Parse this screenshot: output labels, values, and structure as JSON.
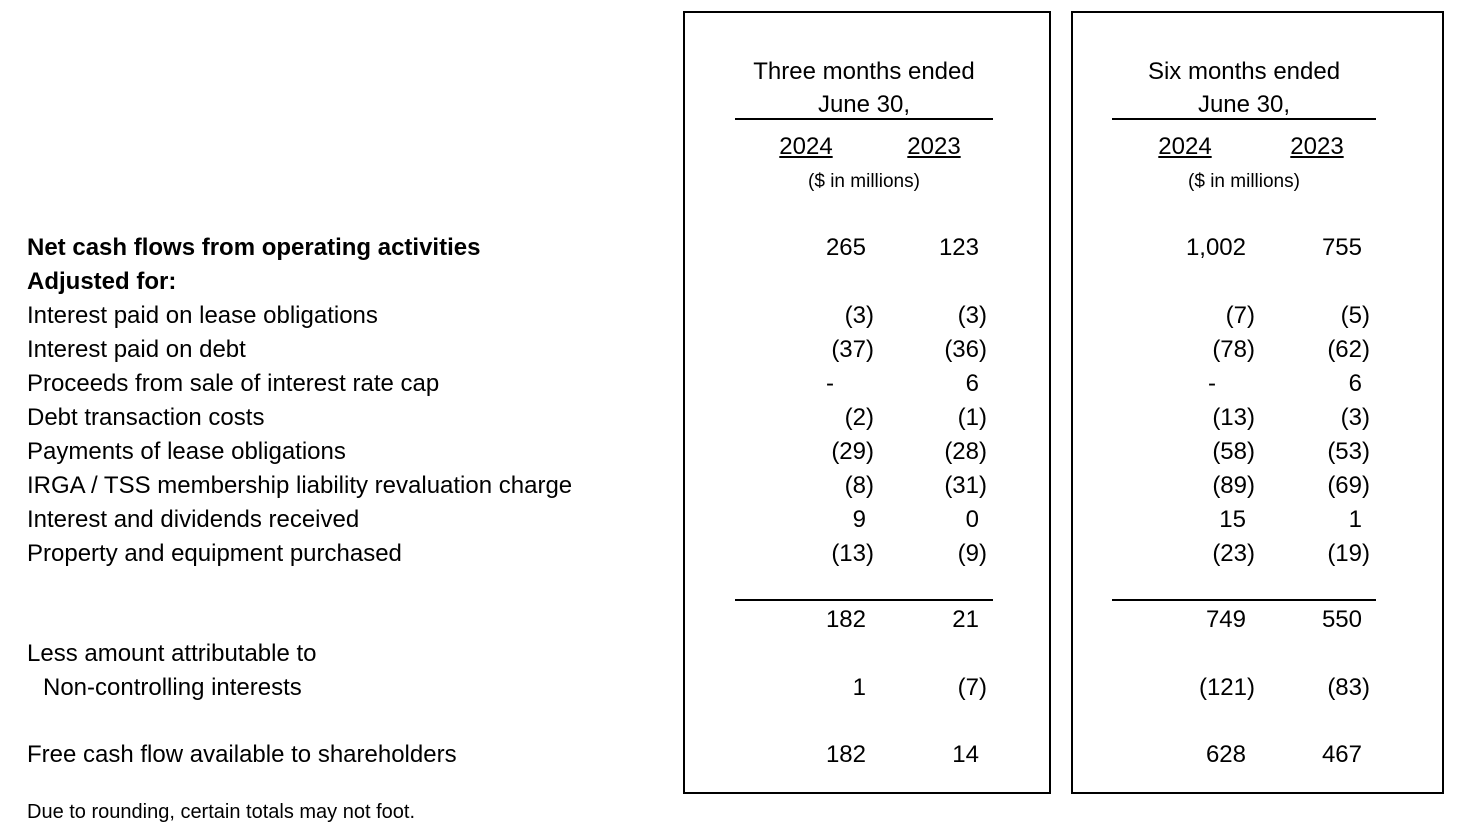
{
  "periods": [
    {
      "header_line1": "Three months ended",
      "header_line2": "June 30,",
      "year_a": "2024",
      "year_b": "2023",
      "units": "($ in millions)"
    },
    {
      "header_line1": "Six months ended",
      "header_line2": "June 30,",
      "year_a": "2024",
      "year_b": "2023",
      "units": "($ in millions)"
    }
  ],
  "rows": [
    {
      "label": "Net cash flows from operating activities",
      "values": [
        "265",
        "123",
        "1,002",
        "755"
      ]
    },
    {
      "label": "Adjusted for:",
      "values": [
        "",
        "",
        "",
        ""
      ]
    },
    {
      "label": "Interest paid on lease obligations",
      "values": [
        "(3)",
        "(3)",
        "(7)",
        "(5)"
      ]
    },
    {
      "label": "Interest paid on debt",
      "values": [
        "(37)",
        "(36)",
        "(78)",
        "(62)"
      ]
    },
    {
      "label": "Proceeds from sale of interest rate cap",
      "values": [
        "-",
        "6",
        "-",
        "6"
      ]
    },
    {
      "label": "Debt transaction costs",
      "values": [
        "(2)",
        "(1)",
        "(13)",
        "(3)"
      ]
    },
    {
      "label": "Payments of lease obligations",
      "values": [
        "(29)",
        "(28)",
        "(58)",
        "(53)"
      ]
    },
    {
      "label": "IRGA / TSS membership liability revaluation charge",
      "values": [
        "(8)",
        "(31)",
        "(89)",
        "(69)"
      ]
    },
    {
      "label": "Interest and dividends received",
      "values": [
        "9",
        "0",
        "15",
        "1"
      ]
    },
    {
      "label": "Property and equipment purchased",
      "values": [
        "(13)",
        "(9)",
        "(23)",
        "(19)"
      ]
    }
  ],
  "subtotal": {
    "values": [
      "182",
      "21",
      "749",
      "550"
    ]
  },
  "less": {
    "label_line1": "Less amount attributable to",
    "label_line2": "Non-controlling interests",
    "values": [
      "1",
      "(7)",
      "(121)",
      "(83)"
    ]
  },
  "free_cash_flow": {
    "label": "Free cash flow available to shareholders",
    "values": [
      "182",
      "14",
      "628",
      "467"
    ]
  },
  "footnote": "Due to rounding, certain totals may not foot."
}
